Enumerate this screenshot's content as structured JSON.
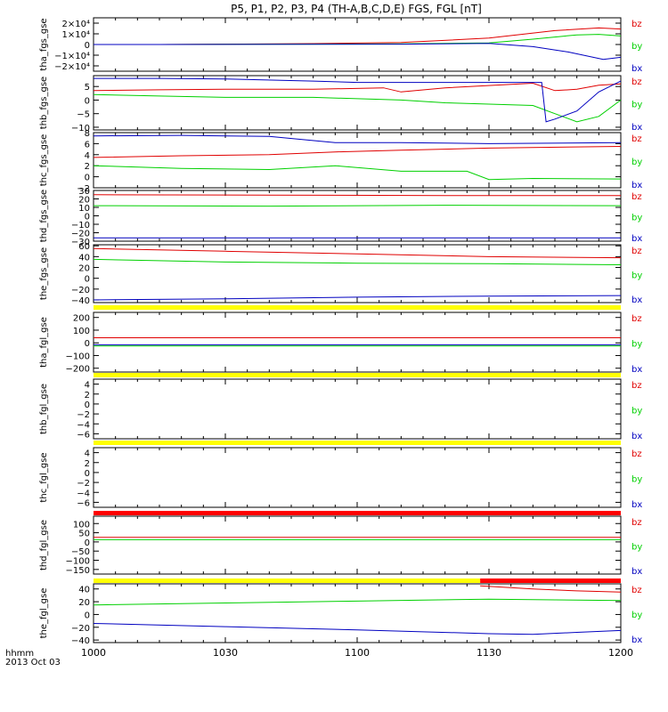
{
  "title": "P5, P1, P2, P3, P4 (TH-A,B,C,D,E) FGS, FGL [nT]",
  "time_axis": {
    "ticks": [
      "1000",
      "1030",
      "1100",
      "1130",
      "1200"
    ],
    "label_units": "hhmm",
    "date": "2013 Oct 03",
    "range_minutes": [
      0,
      120
    ]
  },
  "legend": {
    "bz": "bz",
    "by": "by",
    "bx": "bx"
  },
  "colors": {
    "bz": "#e00000",
    "by": "#00d000",
    "bx": "#0000c0",
    "bar_yellow": "#ffff00",
    "bar_red": "#ff0000",
    "axes": "#000000"
  },
  "chart_data": [
    {
      "type": "line",
      "ylabel": "tha_fgs_gse",
      "ylim": [
        -25000,
        25000
      ],
      "yticks": [
        {
          "v": 20000,
          "t": "2×10⁴"
        },
        {
          "v": 10000,
          "t": "1×10⁴"
        },
        {
          "v": 0,
          "t": "0"
        },
        {
          "v": -10000,
          "t": "−1×10⁴"
        },
        {
          "v": -20000,
          "t": "−2×10⁴"
        }
      ],
      "series": [
        {
          "name": "bz",
          "x": [
            0,
            15,
            30,
            50,
            70,
            90,
            105,
            115,
            120
          ],
          "y": [
            0,
            0,
            300,
            800,
            1800,
            6000,
            13000,
            15500,
            14500
          ]
        },
        {
          "name": "by",
          "x": [
            0,
            15,
            30,
            50,
            70,
            90,
            100,
            110,
            115,
            120
          ],
          "y": [
            0,
            0,
            200,
            300,
            600,
            1500,
            5000,
            9000,
            9500,
            8000
          ]
        },
        {
          "name": "bx",
          "x": [
            0,
            15,
            30,
            50,
            70,
            90,
            100,
            108,
            116,
            120
          ],
          "y": [
            0,
            0,
            100,
            200,
            300,
            1000,
            -2000,
            -7000,
            -14000,
            -12000
          ]
        }
      ]
    },
    {
      "type": "line",
      "ylabel": "thb_fgs_gse",
      "ylim": [
        -11,
        9
      ],
      "yticks": [
        {
          "v": 5,
          "t": "5"
        },
        {
          "v": 0,
          "t": "0"
        },
        {
          "v": -5,
          "t": "−5"
        },
        {
          "v": -10,
          "t": "−10"
        }
      ],
      "series": [
        {
          "name": "bz",
          "x": [
            0,
            15,
            30,
            50,
            66,
            70,
            80,
            100,
            105,
            110,
            115,
            120
          ],
          "y": [
            3.5,
            3.8,
            4,
            4,
            4.5,
            3,
            4.5,
            6.2,
            3.5,
            4,
            5.5,
            6
          ]
        },
        {
          "name": "by",
          "x": [
            0,
            15,
            30,
            50,
            70,
            80,
            100,
            105,
            110,
            115,
            120
          ],
          "y": [
            2,
            1.5,
            1,
            1,
            0,
            -1,
            -2,
            -5,
            -8,
            -6,
            0
          ]
        },
        {
          "name": "bx",
          "x": [
            0,
            15,
            30,
            50,
            60,
            70,
            80,
            102,
            103,
            105,
            110,
            115,
            120
          ],
          "y": [
            8,
            8,
            7.8,
            7,
            6.5,
            6.5,
            6.5,
            6.5,
            -8,
            -7,
            -4,
            3,
            7
          ]
        }
      ]
    },
    {
      "type": "line",
      "ylabel": "thc_fgs_gse",
      "ylim": [
        -2,
        8
      ],
      "yticks": [
        {
          "v": 8,
          "t": "8"
        },
        {
          "v": 6,
          "t": "6"
        },
        {
          "v": 4,
          "t": "4"
        },
        {
          "v": 2,
          "t": "2"
        },
        {
          "v": 0,
          "t": "0"
        },
        {
          "v": -2,
          "t": "−2"
        }
      ],
      "series": [
        {
          "name": "bz",
          "x": [
            0,
            20,
            40,
            55,
            70,
            90,
            120
          ],
          "y": [
            3.5,
            3.8,
            4,
            4.5,
            4.8,
            5.2,
            5.5
          ]
        },
        {
          "name": "by",
          "x": [
            0,
            20,
            40,
            55,
            70,
            85,
            90,
            100,
            120
          ],
          "y": [
            2,
            1.5,
            1.3,
            2,
            1,
            1,
            -0.5,
            -0.3,
            -0.4
          ]
        },
        {
          "name": "bx",
          "x": [
            0,
            20,
            40,
            55,
            70,
            90,
            120
          ],
          "y": [
            7.4,
            7.5,
            7.3,
            6.2,
            6.2,
            6,
            6.2
          ]
        }
      ]
    },
    {
      "type": "line",
      "ylabel": "thd_fgs_gse",
      "ylim": [
        -30,
        30
      ],
      "yticks": [
        {
          "v": 30,
          "t": "30"
        },
        {
          "v": 20,
          "t": "20"
        },
        {
          "v": 10,
          "t": "10"
        },
        {
          "v": 0,
          "t": "0"
        },
        {
          "v": -10,
          "t": "−10"
        },
        {
          "v": -20,
          "t": "−20"
        },
        {
          "v": -30,
          "t": "−30"
        }
      ],
      "series": [
        {
          "name": "bz",
          "x": [
            0,
            40,
            80,
            120
          ],
          "y": [
            25,
            24.5,
            24,
            24
          ]
        },
        {
          "name": "by",
          "x": [
            0,
            40,
            80,
            120
          ],
          "y": [
            12,
            11.5,
            12.5,
            12
          ]
        },
        {
          "name": "bx",
          "x": [
            0,
            40,
            80,
            120
          ],
          "y": [
            -26,
            -26,
            -26,
            -26
          ]
        }
      ]
    },
    {
      "type": "line",
      "ylabel": "the_fgs_gse",
      "ylim": [
        -45,
        62
      ],
      "yticks": [
        {
          "v": 60,
          "t": "60"
        },
        {
          "v": 40,
          "t": "40"
        },
        {
          "v": 20,
          "t": "20"
        },
        {
          "v": 0,
          "t": "0"
        },
        {
          "v": -20,
          "t": "−20"
        },
        {
          "v": -40,
          "t": "−40"
        }
      ],
      "series": [
        {
          "name": "bz",
          "x": [
            0,
            30,
            60,
            90,
            120
          ],
          "y": [
            55,
            50,
            45,
            40,
            38
          ]
        },
        {
          "name": "by",
          "x": [
            0,
            30,
            60,
            90,
            120
          ],
          "y": [
            35,
            30,
            28,
            27,
            25
          ]
        },
        {
          "name": "bx",
          "x": [
            0,
            30,
            60,
            90,
            120
          ],
          "y": [
            -40,
            -38,
            -35,
            -33,
            -32
          ]
        }
      ]
    },
    {
      "type": "line",
      "ylabel": "tha_fgl_gse",
      "ylim": [
        -230,
        240
      ],
      "yticks": [
        {
          "v": 200,
          "t": "200"
        },
        {
          "v": 100,
          "t": "100"
        },
        {
          "v": 0,
          "t": "0"
        },
        {
          "v": -100,
          "t": "−100"
        },
        {
          "v": -200,
          "t": "−200"
        }
      ],
      "series": [
        {
          "name": "bz",
          "x": [
            0,
            120
          ],
          "y": [
            40,
            40
          ]
        },
        {
          "name": "by",
          "x": [
            0,
            120
          ],
          "y": [
            -25,
            -25
          ]
        },
        {
          "name": "bx",
          "x": [
            0,
            120
          ],
          "y": [
            -15,
            -15
          ]
        }
      ]
    },
    {
      "type": "line",
      "ylabel": "thb_fgl_gse",
      "ylim": [
        -7,
        5
      ],
      "yticks": [
        {
          "v": 4,
          "t": "4"
        },
        {
          "v": 2,
          "t": "2"
        },
        {
          "v": 0,
          "t": "0"
        },
        {
          "v": -2,
          "t": "−2"
        },
        {
          "v": -4,
          "t": "−4"
        },
        {
          "v": -6,
          "t": "−6"
        }
      ],
      "series": []
    },
    {
      "type": "line",
      "ylabel": "thc_fgl_gse",
      "ylim": [
        -7,
        5
      ],
      "yticks": [
        {
          "v": 4,
          "t": "4"
        },
        {
          "v": 2,
          "t": "2"
        },
        {
          "v": 0,
          "t": "0"
        },
        {
          "v": -2,
          "t": "−2"
        },
        {
          "v": -4,
          "t": "−4"
        },
        {
          "v": -6,
          "t": "−6"
        }
      ],
      "series": []
    },
    {
      "type": "line",
      "ylabel": "thd_fgl_gse",
      "ylim": [
        -175,
        140
      ],
      "yticks": [
        {
          "v": 100,
          "t": "100"
        },
        {
          "v": 50,
          "t": "50"
        },
        {
          "v": 0,
          "t": "0"
        },
        {
          "v": -50,
          "t": "−50"
        },
        {
          "v": -100,
          "t": "−100"
        },
        {
          "v": -150,
          "t": "−150"
        }
      ],
      "series": [
        {
          "name": "bz",
          "x": [
            0,
            120
          ],
          "y": [
            25,
            25
          ]
        },
        {
          "name": "by",
          "x": [
            0,
            120
          ],
          "y": [
            12,
            12
          ]
        }
      ]
    },
    {
      "type": "line",
      "ylabel": "the_fgl_gse",
      "ylim": [
        -44,
        48
      ],
      "yticks": [
        {
          "v": 40,
          "t": "40"
        },
        {
          "v": 20,
          "t": "20"
        },
        {
          "v": 0,
          "t": "0"
        },
        {
          "v": -20,
          "t": "−20"
        },
        {
          "v": -40,
          "t": "−40"
        }
      ],
      "series": [
        {
          "name": "bz",
          "x": [
            88,
            100,
            110,
            120
          ],
          "y": [
            45,
            40,
            37,
            35
          ]
        },
        {
          "name": "by",
          "x": [
            0,
            30,
            60,
            90,
            120
          ],
          "y": [
            15,
            18,
            21,
            24,
            22
          ]
        },
        {
          "name": "bx",
          "x": [
            0,
            30,
            60,
            90,
            100,
            110,
            120
          ],
          "y": [
            -14,
            -19,
            -24,
            -30,
            -31,
            -28,
            -25
          ]
        }
      ]
    }
  ],
  "mode_bars": [
    {
      "before_panel": 5,
      "segments": [
        {
          "from": 0,
          "to": 120,
          "color": "yellow"
        }
      ]
    },
    {
      "before_panel": 6,
      "segments": [
        {
          "from": 0,
          "to": 120,
          "color": "yellow"
        }
      ]
    },
    {
      "before_panel": 7,
      "segments": [
        {
          "from": 0,
          "to": 120,
          "color": "yellow"
        }
      ]
    },
    {
      "before_panel": 8,
      "segments": [
        {
          "from": 0,
          "to": 120,
          "color": "red"
        }
      ]
    },
    {
      "before_panel": 9,
      "segments": [
        {
          "from": 0,
          "to": 88,
          "color": "yellow"
        },
        {
          "from": 88,
          "to": 120,
          "color": "red"
        }
      ]
    }
  ]
}
